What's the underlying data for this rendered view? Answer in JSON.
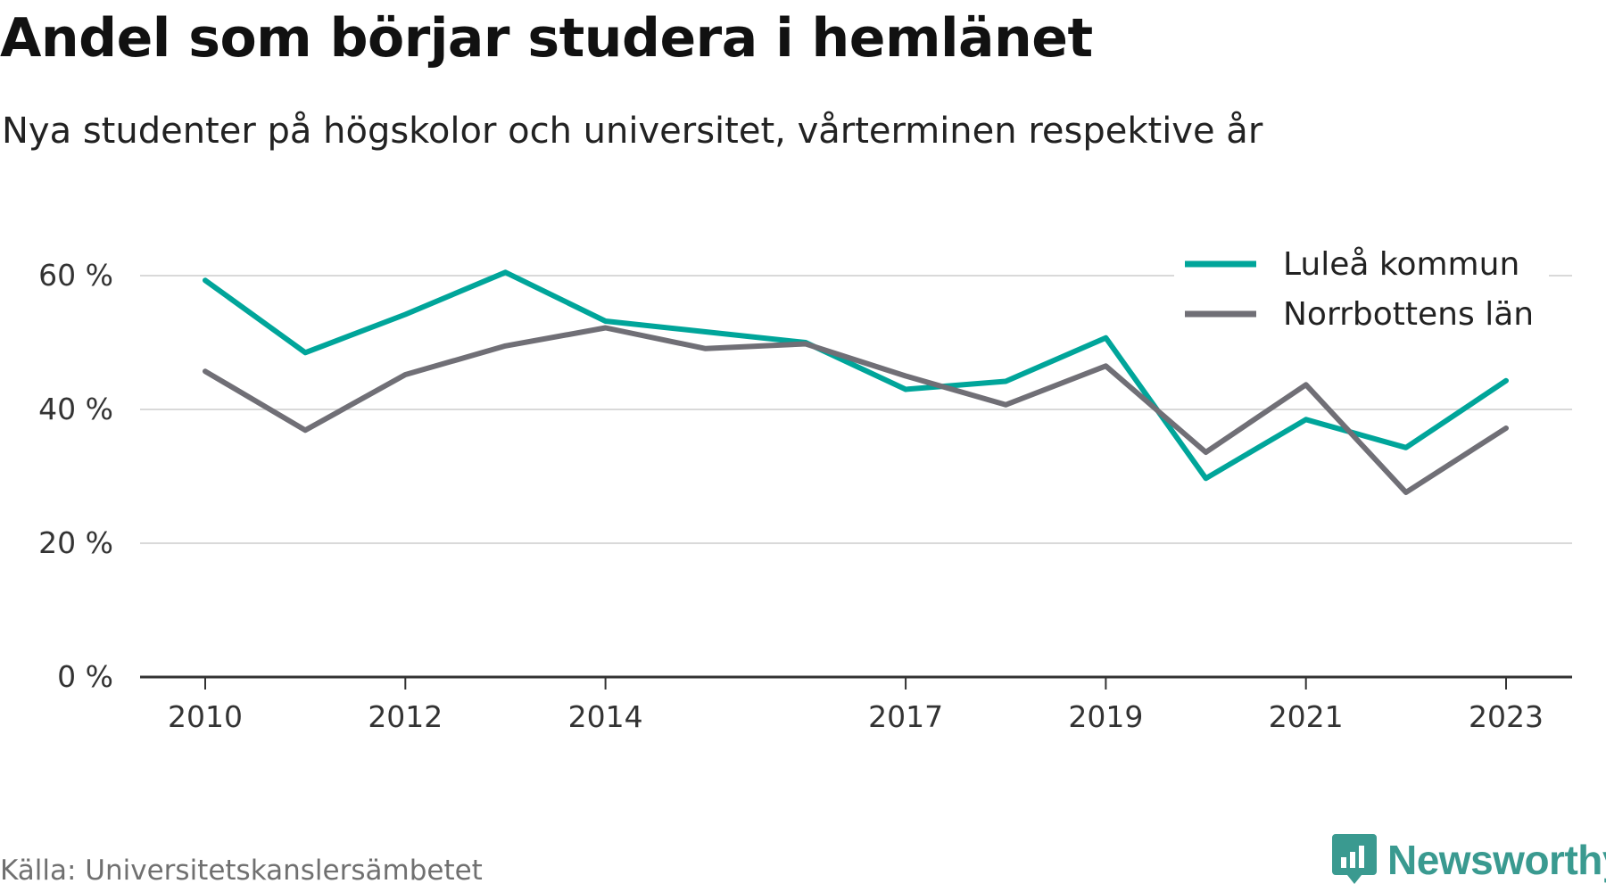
{
  "title": "Andel som börjar studera i hemlänet",
  "subtitle": "Nya studenter på högskolor och universitet, vårterminen respektive år",
  "source": "Källa: Universitetskanslersämbetet",
  "brand": {
    "name": "Newsworthy",
    "color": "#3a9a90",
    "icon": "bar-chart-speech-bubble-icon"
  },
  "colors": {
    "grid": "#d9d9d9",
    "axis": "#333333",
    "tick_text": "#333333"
  },
  "chart_data": {
    "type": "line",
    "x": [
      2010,
      2011,
      2012,
      2013,
      2014,
      2015,
      2016,
      2017,
      2018,
      2019,
      2020,
      2021,
      2022,
      2023
    ],
    "x_tick_labels": [
      "2010",
      "2012",
      "2014",
      "2017",
      "2019",
      "2021",
      "2023"
    ],
    "y_ticks": [
      0,
      20,
      40,
      60
    ],
    "y_tick_labels": [
      "0 %",
      "20 %",
      "40 %",
      "60 %"
    ],
    "ylim": [
      0,
      70
    ],
    "grid": true,
    "legend_position": "top-right",
    "series": [
      {
        "name": "Luleå kommun",
        "color": "#00a59a",
        "values": [
          59.3,
          48.5,
          54.2,
          60.5,
          53.2,
          51.6,
          50.0,
          43.0,
          44.2,
          50.7,
          29.7,
          38.5,
          34.3,
          44.3
        ]
      },
      {
        "name": "Norrbottens län",
        "color": "#706f76",
        "values": [
          45.7,
          36.9,
          45.2,
          49.5,
          52.2,
          49.1,
          49.8,
          45.0,
          40.7,
          46.5,
          33.6,
          43.7,
          27.6,
          37.2
        ]
      }
    ]
  }
}
